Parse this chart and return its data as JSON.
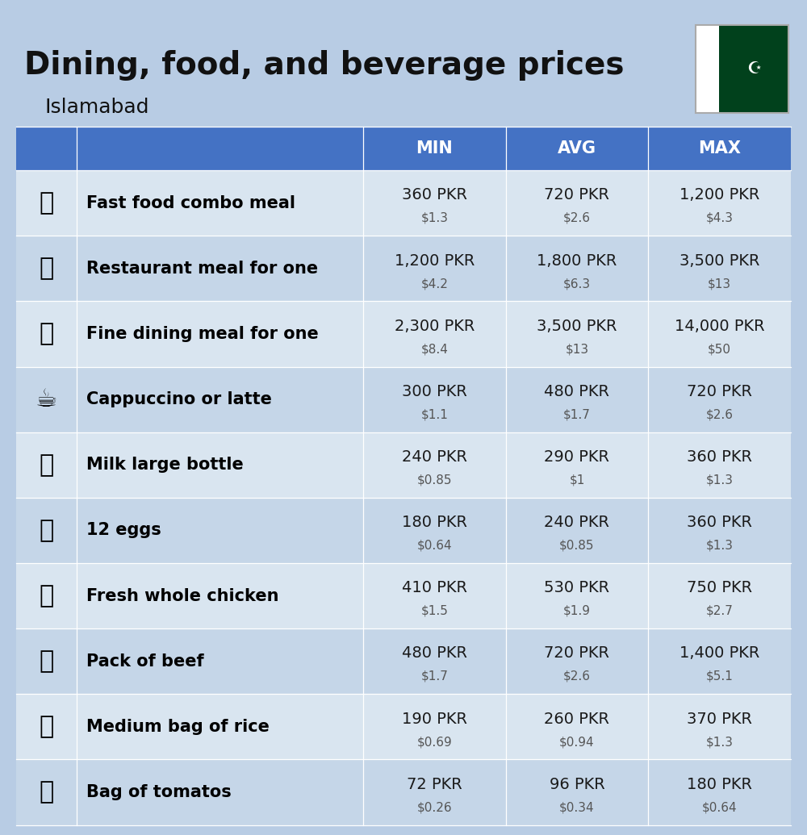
{
  "title": "Dining, food, and beverage prices",
  "subtitle": "Islamabad",
  "background_color": "#b8cce4",
  "header_bg": "#4472c4",
  "header_text_color": "#ffffff",
  "row_bg_even": "#c5d6e8",
  "row_bg_odd": "#d9e5f0",
  "item_label_color": "#000000",
  "price_pkr_color": "#1a1a1a",
  "price_usd_color": "#555555",
  "header_labels": [
    "MIN",
    "AVG",
    "MAX"
  ],
  "items": [
    {
      "name": "Fast food combo meal",
      "emoji": "🍔",
      "min_pkr": "360 PKR",
      "min_usd": "$1.3",
      "avg_pkr": "720 PKR",
      "avg_usd": "$2.6",
      "max_pkr": "1,200 PKR",
      "max_usd": "$4.3"
    },
    {
      "name": "Restaurant meal for one",
      "emoji": "🍳",
      "min_pkr": "1,200 PKR",
      "min_usd": "$4.2",
      "avg_pkr": "1,800 PKR",
      "avg_usd": "$6.3",
      "max_pkr": "3,500 PKR",
      "max_usd": "$13"
    },
    {
      "name": "Fine dining meal for one",
      "emoji": "🍽",
      "min_pkr": "2,300 PKR",
      "min_usd": "$8.4",
      "avg_pkr": "3,500 PKR",
      "avg_usd": "$13",
      "max_pkr": "14,000 PKR",
      "max_usd": "$50"
    },
    {
      "name": "Cappuccino or latte",
      "emoji": "☕",
      "min_pkr": "300 PKR",
      "min_usd": "$1.1",
      "avg_pkr": "480 PKR",
      "avg_usd": "$1.7",
      "max_pkr": "720 PKR",
      "max_usd": "$2.6"
    },
    {
      "name": "Milk large bottle",
      "emoji": "🥛",
      "min_pkr": "240 PKR",
      "min_usd": "$0.85",
      "avg_pkr": "290 PKR",
      "avg_usd": "$1",
      "max_pkr": "360 PKR",
      "max_usd": "$1.3"
    },
    {
      "name": "12 eggs",
      "emoji": "🥚",
      "min_pkr": "180 PKR",
      "min_usd": "$0.64",
      "avg_pkr": "240 PKR",
      "avg_usd": "$0.85",
      "max_pkr": "360 PKR",
      "max_usd": "$1.3"
    },
    {
      "name": "Fresh whole chicken",
      "emoji": "🐔",
      "min_pkr": "410 PKR",
      "min_usd": "$1.5",
      "avg_pkr": "530 PKR",
      "avg_usd": "$1.9",
      "max_pkr": "750 PKR",
      "max_usd": "$2.7"
    },
    {
      "name": "Pack of beef",
      "emoji": "🥩",
      "min_pkr": "480 PKR",
      "min_usd": "$1.7",
      "avg_pkr": "720 PKR",
      "avg_usd": "$2.6",
      "max_pkr": "1,400 PKR",
      "max_usd": "$5.1"
    },
    {
      "name": "Medium bag of rice",
      "emoji": "🍚",
      "min_pkr": "190 PKR",
      "min_usd": "$0.69",
      "avg_pkr": "260 PKR",
      "avg_usd": "$0.94",
      "max_pkr": "370 PKR",
      "max_usd": "$1.3"
    },
    {
      "name": "Bag of tomatos",
      "emoji": "🍅",
      "min_pkr": "72 PKR",
      "min_usd": "$0.26",
      "avg_pkr": "96 PKR",
      "avg_usd": "$0.34",
      "max_pkr": "180 PKR",
      "max_usd": "$0.64"
    }
  ],
  "flag_colors": {
    "white": "#ffffff",
    "green": "#01411c"
  },
  "title_fontsize": 28,
  "subtitle_fontsize": 18,
  "header_fontsize": 15,
  "item_name_fontsize": 15,
  "price_pkr_fontsize": 14,
  "price_usd_fontsize": 11
}
